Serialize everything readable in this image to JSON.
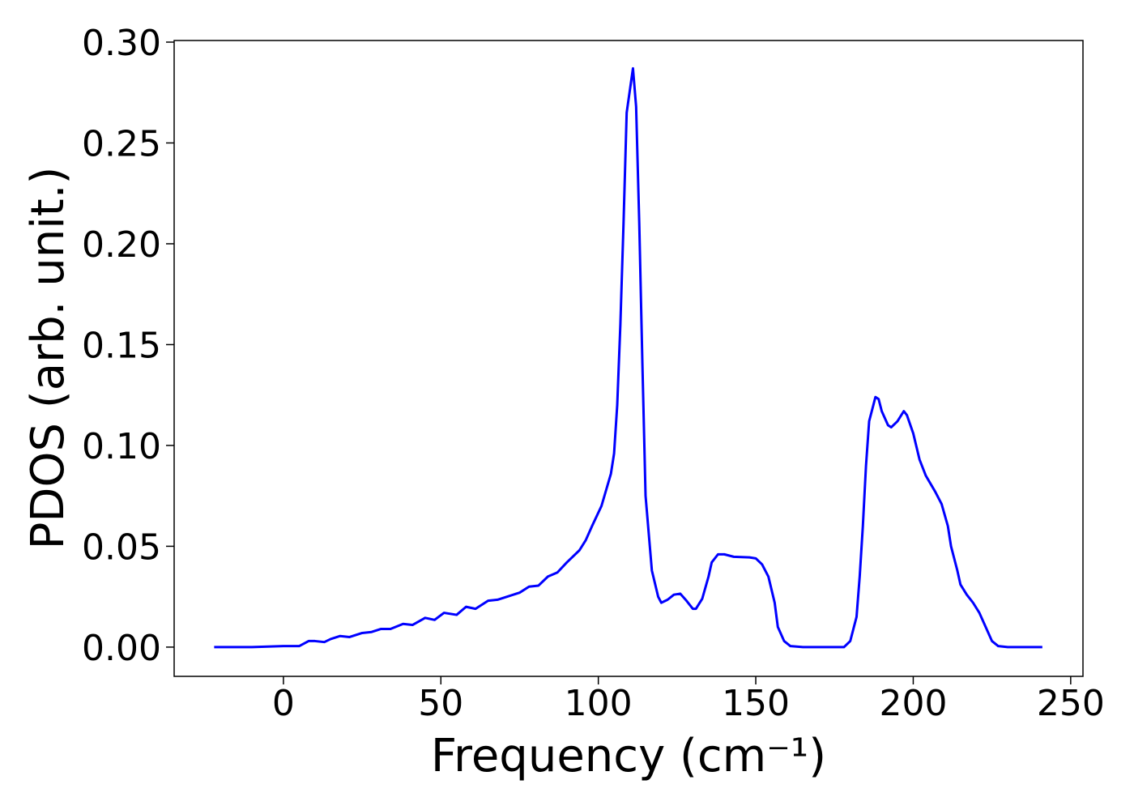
{
  "chart_data": {
    "type": "line",
    "xlabel": "Frequency (cm⁻¹)",
    "ylabel": "PDOS (arb. unit.)",
    "xlim": [
      -34.7,
      253.9
    ],
    "ylim": [
      -0.0145,
      0.3008
    ],
    "xticks": [
      0,
      50,
      100,
      150,
      200,
      250
    ],
    "yticks": [
      {
        "value": 0,
        "label": "0.00"
      },
      {
        "value": 0.05,
        "label": "0.05"
      },
      {
        "value": 0.1,
        "label": "0.10"
      },
      {
        "value": 0.15,
        "label": "0.15"
      },
      {
        "value": 0.2,
        "label": "0.20"
      },
      {
        "value": 0.25,
        "label": "0.25"
      },
      {
        "value": 0.3,
        "label": "0.30"
      }
    ],
    "grid": false,
    "series": [
      {
        "color": "#0000ff",
        "x": [
          -22,
          -10,
          0,
          5,
          8,
          10,
          13,
          15,
          18,
          21,
          25,
          28,
          31,
          34,
          38,
          41,
          45,
          48,
          51,
          55,
          58,
          61,
          65,
          68,
          71,
          75,
          78,
          81,
          84,
          87,
          90,
          94,
          96,
          98,
          101,
          104,
          105,
          106,
          107,
          108,
          109,
          111,
          112,
          113,
          114,
          115,
          117,
          119,
          120,
          122,
          124,
          126,
          128,
          130,
          131,
          133,
          135,
          136,
          138,
          140,
          143,
          148,
          150,
          152,
          154,
          156,
          157,
          159,
          161,
          165,
          178,
          180,
          182,
          183,
          184,
          185,
          186,
          188,
          189,
          190,
          192,
          193,
          195,
          197,
          198,
          200,
          202,
          204,
          207,
          209,
          211,
          212,
          214,
          215,
          217,
          219,
          221,
          223,
          225,
          227,
          230,
          241
        ],
        "values": [
          0,
          0,
          0.0005,
          0.0005,
          0.003,
          0.003,
          0.0025,
          0.004,
          0.0055,
          0.005,
          0.007,
          0.0075,
          0.009,
          0.009,
          0.0115,
          0.011,
          0.0145,
          0.0135,
          0.017,
          0.016,
          0.02,
          0.019,
          0.023,
          0.0235,
          0.025,
          0.027,
          0.03,
          0.0305,
          0.035,
          0.037,
          0.042,
          0.048,
          0.053,
          0.06,
          0.07,
          0.086,
          0.096,
          0.12,
          0.16,
          0.21,
          0.265,
          0.287,
          0.268,
          0.21,
          0.14,
          0.075,
          0.038,
          0.025,
          0.022,
          0.0235,
          0.026,
          0.0265,
          0.023,
          0.019,
          0.019,
          0.024,
          0.035,
          0.042,
          0.046,
          0.046,
          0.0448,
          0.0445,
          0.044,
          0.041,
          0.035,
          0.022,
          0.01,
          0.003,
          0.0005,
          0,
          0,
          0.003,
          0.015,
          0.035,
          0.06,
          0.09,
          0.112,
          0.124,
          0.123,
          0.117,
          0.11,
          0.109,
          0.112,
          0.117,
          0.115,
          0.106,
          0.093,
          0.085,
          0.077,
          0.071,
          0.06,
          0.05,
          0.038,
          0.031,
          0.026,
          0.022,
          0.017,
          0.01,
          0.003,
          0.0005,
          0,
          0
        ]
      }
    ]
  }
}
